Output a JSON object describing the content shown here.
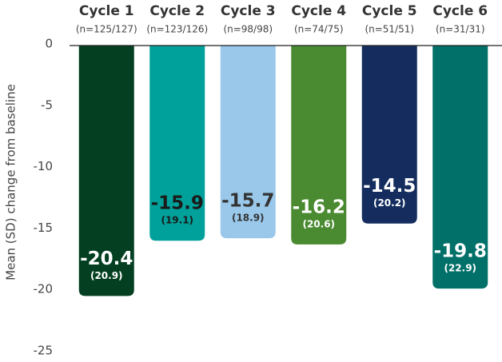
{
  "chart_data": {
    "type": "bar",
    "y_label": "Mean (SD) change from baseline",
    "categories": [
      "Cycle 1",
      "Cycle 2",
      "Cycle 3",
      "Cycle 4",
      "Cycle 5",
      "Cycle 6"
    ],
    "category_subtitles": [
      "(n=125/127)",
      "(n=123/126)",
      "(n=98/98)",
      "(n=74/75)",
      "(n=51/51)",
      "(n=31/31)"
    ],
    "values": [
      -20.4,
      -15.9,
      -15.7,
      -16.2,
      -14.5,
      -19.8
    ],
    "sd_values": [
      20.9,
      19.1,
      18.9,
      20.6,
      20.2,
      22.9
    ],
    "sd_labels": [
      "(20.9)",
      "(19.1)",
      "(18.9)",
      "(20.6)",
      "(20.2)",
      "(22.9)"
    ],
    "colors": [
      "#033f20",
      "#00a19a",
      "#9ac8ea",
      "#4a8a30",
      "#142d5e",
      "#007068"
    ],
    "label_colors": [
      "#ffffff",
      "#1a1a1a",
      "#333333",
      "#ffffff",
      "#ffffff",
      "#ffffff"
    ],
    "ylim": [
      -25,
      0
    ],
    "yticks": [
      0,
      -5,
      -10,
      -15,
      -20,
      -25
    ]
  }
}
